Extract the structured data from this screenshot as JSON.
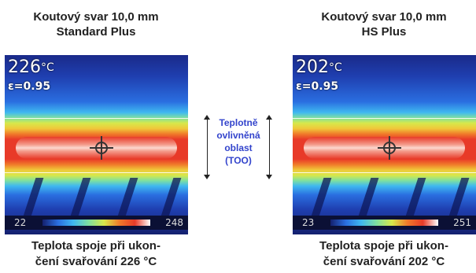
{
  "left_panel": {
    "title_line1": "Koutový svar 10,0 mm",
    "title_line2": "Standard Plus",
    "temperature": "226",
    "temperature_unit": "°C",
    "emissivity": "ε=0.95",
    "scale_min": "22",
    "scale_max": "248",
    "caption_line1": "Teplota spoje při ukon-",
    "caption_line2": "čení svařování 226 °C"
  },
  "right_panel": {
    "title_line1": "Koutový svar 10,0 mm",
    "title_line2": "HS Plus",
    "temperature": "202",
    "temperature_unit": "°C",
    "emissivity": "ε=0.95",
    "scale_min": "23",
    "scale_max": "251",
    "caption_line1": "Teplota spoje při ukon-",
    "caption_line2": "čení svařování 202 °C"
  },
  "too_label": {
    "line1": "Teplotně",
    "line2": "ovlivněná",
    "line3": "oblast",
    "line4": "(TOO)"
  },
  "colors": {
    "label_blue": "#3344cc",
    "hot": "#e83a28",
    "cold": "#14206e"
  }
}
